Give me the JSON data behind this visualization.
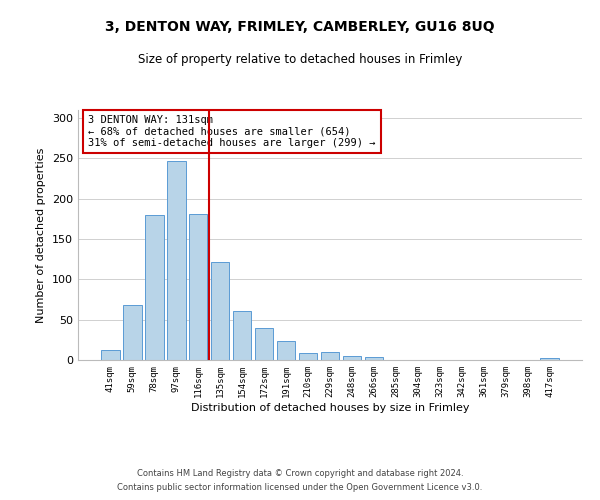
{
  "title": "3, DENTON WAY, FRIMLEY, CAMBERLEY, GU16 8UQ",
  "subtitle": "Size of property relative to detached houses in Frimley",
  "xlabel": "Distribution of detached houses by size in Frimley",
  "ylabel": "Number of detached properties",
  "bar_labels": [
    "41sqm",
    "59sqm",
    "78sqm",
    "97sqm",
    "116sqm",
    "135sqm",
    "154sqm",
    "172sqm",
    "191sqm",
    "210sqm",
    "229sqm",
    "248sqm",
    "266sqm",
    "285sqm",
    "304sqm",
    "323sqm",
    "342sqm",
    "361sqm",
    "379sqm",
    "398sqm",
    "417sqm"
  ],
  "bar_heights": [
    13,
    68,
    180,
    247,
    181,
    122,
    61,
    40,
    23,
    9,
    10,
    5,
    4,
    0,
    0,
    0,
    0,
    0,
    0,
    0,
    2
  ],
  "bar_color": "#b8d4e8",
  "bar_edge_color": "#5b9bd5",
  "vline_index": 5,
  "vline_color": "#cc0000",
  "annotation_text": "3 DENTON WAY: 131sqm\n← 68% of detached houses are smaller (654)\n31% of semi-detached houses are larger (299) →",
  "ylim": [
    0,
    310
  ],
  "yticks": [
    0,
    50,
    100,
    150,
    200,
    250,
    300
  ],
  "footer_line1": "Contains HM Land Registry data © Crown copyright and database right 2024.",
  "footer_line2": "Contains public sector information licensed under the Open Government Licence v3.0.",
  "bg_color": "#ffffff",
  "grid_color": "#d0d0d0"
}
